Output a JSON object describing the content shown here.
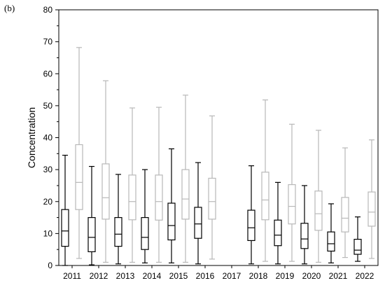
{
  "panel_label": "(b)",
  "chart_data": {
    "type": "box",
    "title": "",
    "xlabel": "",
    "ylabel": "Concentration",
    "ylim": [
      0,
      80
    ],
    "yticks": [
      0,
      10,
      20,
      30,
      40,
      50,
      60,
      70,
      80
    ],
    "categories": [
      "2011",
      "2012",
      "2013",
      "2014",
      "2015",
      "2016",
      "2017",
      "2018",
      "2019",
      "2020",
      "2021",
      "2022"
    ],
    "grid": false,
    "legend": "none",
    "series": [
      {
        "color": "#000000",
        "boxes": [
          {
            "min": 0,
            "q1": 6,
            "median": 10.8,
            "q3": 17.5,
            "max": 34.5
          },
          {
            "min": 0.2,
            "q1": 4.3,
            "median": 8.8,
            "q3": 15,
            "max": 31
          },
          {
            "min": 0.5,
            "q1": 6,
            "median": 9.8,
            "q3": 15,
            "max": 28.5
          },
          {
            "min": 0.8,
            "q1": 5,
            "median": 8.8,
            "q3": 15,
            "max": 30
          },
          {
            "min": 0.8,
            "q1": 8,
            "median": 12.5,
            "q3": 19.5,
            "max": 36.5
          },
          {
            "min": 0.5,
            "q1": 8.5,
            "median": 13,
            "q3": 18.2,
            "max": 32.2
          },
          null,
          {
            "min": 0.5,
            "q1": 7.8,
            "median": 11.8,
            "q3": 17.3,
            "max": 31.2
          },
          {
            "min": 0.5,
            "q1": 6.2,
            "median": 9.5,
            "q3": 14.2,
            "max": 26
          },
          {
            "min": 0.5,
            "q1": 5.3,
            "median": 8.3,
            "q3": 13.2,
            "max": 25
          },
          {
            "min": 0.8,
            "q1": 4.5,
            "median": 6.8,
            "q3": 10.5,
            "max": 19.3
          },
          {
            "min": 1.3,
            "q1": 3.5,
            "median": 4.8,
            "q3": 8.2,
            "max": 15.2
          }
        ]
      },
      {
        "color": "#b8b8b8",
        "boxes": [
          {
            "min": 2.2,
            "q1": 17.5,
            "median": 26,
            "q3": 37.8,
            "max": 68.2
          },
          {
            "min": 1,
            "q1": 14.5,
            "median": 21.2,
            "q3": 31.8,
            "max": 57.8
          },
          {
            "min": 1,
            "q1": 14.3,
            "median": 20,
            "q3": 28.3,
            "max": 49.3
          },
          {
            "min": 1,
            "q1": 14.2,
            "median": 20,
            "q3": 28.3,
            "max": 49.5
          },
          {
            "min": 1,
            "q1": 14.5,
            "median": 20.8,
            "q3": 30,
            "max": 53.3
          },
          {
            "min": 2,
            "q1": 14.5,
            "median": 20,
            "q3": 27.3,
            "max": 46.8
          },
          null,
          {
            "min": 1.3,
            "q1": 14.3,
            "median": 20.5,
            "q3": 29.2,
            "max": 51.8
          },
          {
            "min": 1.3,
            "q1": 13,
            "median": 18.5,
            "q3": 25.3,
            "max": 44.2
          },
          {
            "min": 1,
            "q1": 11,
            "median": 16.2,
            "q3": 23.3,
            "max": 42.3
          },
          {
            "min": 2.5,
            "q1": 10.5,
            "median": 14.8,
            "q3": 21.3,
            "max": 36.8
          },
          {
            "min": 2.2,
            "q1": 12.3,
            "median": 16.7,
            "q3": 23,
            "max": 39.3
          }
        ]
      }
    ]
  }
}
